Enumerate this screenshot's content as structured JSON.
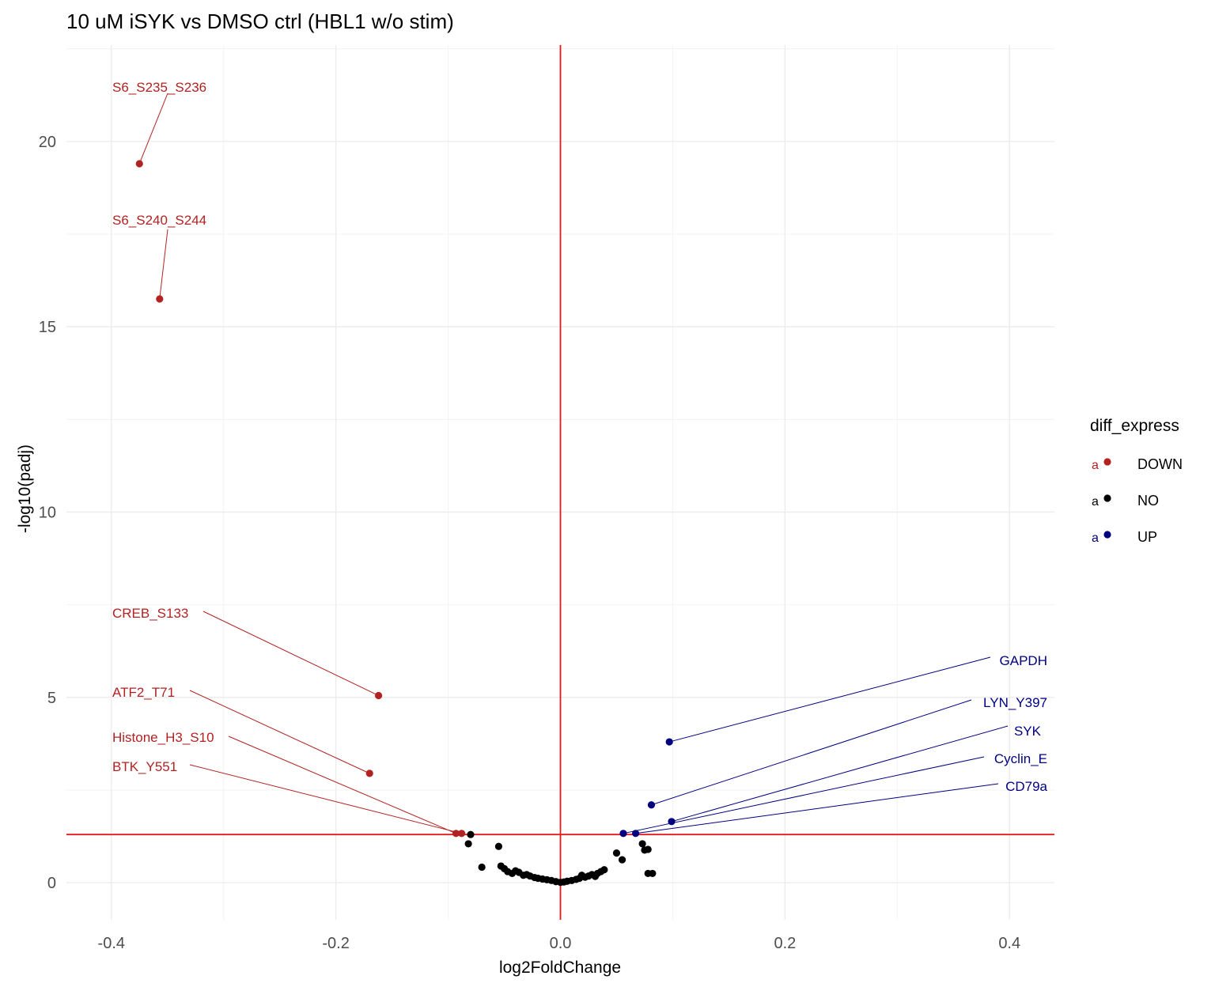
{
  "chart_data": {
    "type": "scatter",
    "title": "10 uM iSYK vs DMSO ctrl (HBL1 w/o stim)",
    "xlabel": "log2FoldChange",
    "ylabel": "-log10(padj)",
    "xlim": [
      -0.44,
      0.44
    ],
    "ylim": [
      -1.0,
      22.6
    ],
    "x_ticks": [
      -0.4,
      -0.2,
      0.0,
      0.2,
      0.4
    ],
    "x_tick_labels": [
      "-0.4",
      "-0.2",
      "0.0",
      "0.2",
      "0.4"
    ],
    "y_ticks": [
      0,
      5,
      10,
      15,
      20
    ],
    "y_tick_labels": [
      "0",
      "5",
      "10",
      "15",
      "20"
    ],
    "grid": true,
    "threshold_lines": {
      "vertical_x": 0.0,
      "horizontal_y": 1.3,
      "color": "#e31a1c"
    },
    "colors": {
      "DOWN": "#b22222",
      "NO": "#000000",
      "UP": "#000080"
    },
    "legend": {
      "title": "diff_express",
      "position": "right",
      "entries": [
        {
          "key": "DOWN",
          "label": "DOWN",
          "glyph": "a"
        },
        {
          "key": "NO",
          "label": "NO",
          "glyph": "a"
        },
        {
          "key": "UP",
          "label": "UP",
          "glyph": "a"
        }
      ]
    },
    "series": [
      {
        "name": "DOWN",
        "points": [
          {
            "x": -0.375,
            "y": 19.4,
            "label": "S6_S235_S236"
          },
          {
            "x": -0.357,
            "y": 15.75,
            "label": "S6_S240_S244"
          },
          {
            "x": -0.162,
            "y": 5.05,
            "label": "CREB_S133"
          },
          {
            "x": -0.17,
            "y": 2.95,
            "label": "ATF2_T71"
          },
          {
            "x": -0.093,
            "y": 1.33,
            "label": "Histone_H3_S10"
          },
          {
            "x": -0.088,
            "y": 1.33,
            "label": "BTK_Y551"
          }
        ]
      },
      {
        "name": "NO",
        "points": [
          {
            "x": -0.08,
            "y": 1.3
          },
          {
            "x": -0.082,
            "y": 1.05
          },
          {
            "x": -0.07,
            "y": 0.42
          },
          {
            "x": -0.055,
            "y": 0.98
          },
          {
            "x": -0.053,
            "y": 0.45
          },
          {
            "x": -0.05,
            "y": 0.38
          },
          {
            "x": -0.047,
            "y": 0.3
          },
          {
            "x": -0.043,
            "y": 0.25
          },
          {
            "x": -0.04,
            "y": 0.32
          },
          {
            "x": -0.037,
            "y": 0.28
          },
          {
            "x": -0.033,
            "y": 0.2
          },
          {
            "x": -0.03,
            "y": 0.22
          },
          {
            "x": -0.027,
            "y": 0.18
          },
          {
            "x": -0.023,
            "y": 0.14
          },
          {
            "x": -0.02,
            "y": 0.12
          },
          {
            "x": -0.016,
            "y": 0.1
          },
          {
            "x": -0.012,
            "y": 0.08
          },
          {
            "x": -0.008,
            "y": 0.06
          },
          {
            "x": -0.004,
            "y": 0.03
          },
          {
            "x": 0.0,
            "y": 0.01
          },
          {
            "x": 0.003,
            "y": 0.02
          },
          {
            "x": 0.006,
            "y": 0.04
          },
          {
            "x": 0.01,
            "y": 0.06
          },
          {
            "x": 0.014,
            "y": 0.09
          },
          {
            "x": 0.017,
            "y": 0.12
          },
          {
            "x": 0.019,
            "y": 0.2
          },
          {
            "x": 0.022,
            "y": 0.15
          },
          {
            "x": 0.025,
            "y": 0.18
          },
          {
            "x": 0.028,
            "y": 0.22
          },
          {
            "x": 0.031,
            "y": 0.17
          },
          {
            "x": 0.033,
            "y": 0.25
          },
          {
            "x": 0.036,
            "y": 0.3
          },
          {
            "x": 0.039,
            "y": 0.35
          },
          {
            "x": 0.05,
            "y": 0.8
          },
          {
            "x": 0.055,
            "y": 0.62
          },
          {
            "x": 0.073,
            "y": 1.05
          },
          {
            "x": 0.075,
            "y": 0.88
          },
          {
            "x": 0.078,
            "y": 0.9
          },
          {
            "x": 0.078,
            "y": 0.25
          },
          {
            "x": 0.082,
            "y": 0.25
          }
        ]
      },
      {
        "name": "UP",
        "points": [
          {
            "x": 0.097,
            "y": 3.8,
            "label": "GAPDH"
          },
          {
            "x": 0.081,
            "y": 2.1,
            "label": "LYN_Y397"
          },
          {
            "x": 0.099,
            "y": 1.65,
            "label": "SYK"
          },
          {
            "x": 0.056,
            "y": 1.33,
            "label": "Cyclin_E"
          },
          {
            "x": 0.067,
            "y": 1.33,
            "label": "CD79a"
          }
        ]
      }
    ]
  }
}
